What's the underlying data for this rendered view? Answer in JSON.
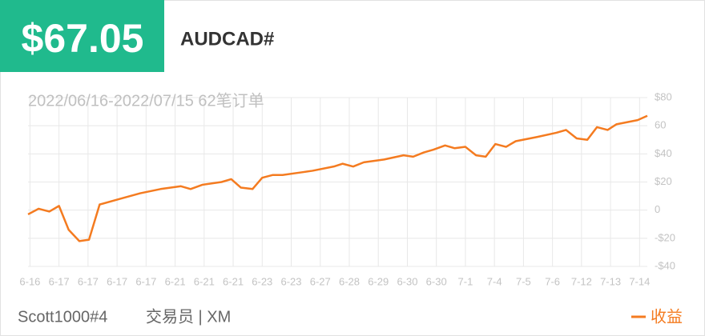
{
  "header": {
    "profit": "$67.05",
    "symbol": "AUDCAD#"
  },
  "footer": {
    "trader": "Scott1000#4",
    "role": "交易员 | XM"
  },
  "chart_data": {
    "type": "line",
    "subtitle": "2022/06/16-2022/07/15 62笔订单",
    "x": [
      -0.2,
      0.9,
      2.0,
      3.0,
      4.0,
      5.1,
      6.1,
      7.2,
      9.3,
      11.4,
      13.5,
      15.6,
      16.6,
      17.8,
      19.8,
      20.8,
      21.8,
      23.0,
      24.0,
      25.1,
      26.1,
      28.2,
      29.2,
      31.4,
      32.3,
      33.4,
      34.5,
      36.6,
      38.6,
      39.6,
      40.7,
      41.7,
      42.9,
      43.9,
      45.0,
      46.1,
      47.1,
      48.1,
      49.2,
      50.2,
      52.4,
      54.4,
      55.4,
      56.5,
      57.6,
      58.6,
      59.7,
      60.6,
      62.8,
      63.8
    ],
    "series": [
      {
        "name": "收益",
        "color": "#f47b20",
        "values": [
          -3,
          1,
          -1,
          3,
          -14,
          -22,
          -21,
          4,
          8,
          12,
          15,
          17,
          15,
          18,
          20,
          22,
          16,
          15,
          23,
          25,
          25,
          27,
          28,
          31,
          33,
          31,
          34,
          36,
          39,
          38,
          41,
          43,
          46,
          44,
          45,
          39,
          38,
          47,
          45,
          49,
          52,
          55,
          57,
          51,
          50,
          59,
          57,
          61,
          64,
          67.05
        ]
      }
    ],
    "xlim": [
      -0.2,
      63.8
    ],
    "xticks": [
      {
        "value": 0,
        "label": "6-16"
      },
      {
        "value": 3,
        "label": "6-17"
      },
      {
        "value": 6,
        "label": "6-17"
      },
      {
        "value": 9,
        "label": "6-17"
      },
      {
        "value": 12,
        "label": "6-17"
      },
      {
        "value": 15,
        "label": "6-21"
      },
      {
        "value": 18,
        "label": "6-21"
      },
      {
        "value": 21,
        "label": "6-21"
      },
      {
        "value": 24,
        "label": "6-23"
      },
      {
        "value": 27,
        "label": "6-23"
      },
      {
        "value": 30,
        "label": "6-27"
      },
      {
        "value": 33,
        "label": "6-28"
      },
      {
        "value": 36,
        "label": "6-29"
      },
      {
        "value": 39,
        "label": "6-30"
      },
      {
        "value": 42,
        "label": "6-30"
      },
      {
        "value": 45,
        "label": "7-1"
      },
      {
        "value": 48,
        "label": "7-4"
      },
      {
        "value": 51,
        "label": "7-5"
      },
      {
        "value": 54,
        "label": "7-6"
      },
      {
        "value": 57,
        "label": "7-12"
      },
      {
        "value": 60,
        "label": "7-13"
      },
      {
        "value": 63,
        "label": "7-14"
      }
    ],
    "ylim": [
      -40,
      80
    ],
    "yticks": [
      {
        "value": 80,
        "label": "$80"
      },
      60,
      {
        "value": 40,
        "label": "$40"
      },
      {
        "value": 20,
        "label": "$20"
      },
      0,
      {
        "value": -20,
        "label": "-$20"
      },
      {
        "value": -40,
        "label": "-$40"
      }
    ],
    "grid": true
  }
}
